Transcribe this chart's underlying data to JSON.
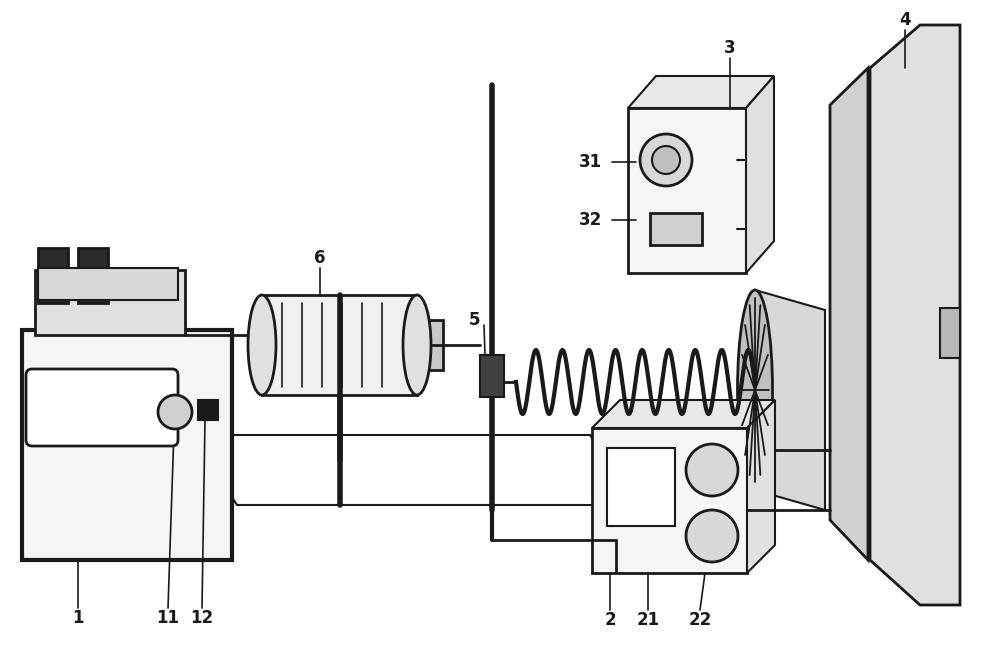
{
  "bg_color": "#ffffff",
  "line_color": "#1a1a1a",
  "label_fontsize": 12,
  "label_fontweight": "bold"
}
